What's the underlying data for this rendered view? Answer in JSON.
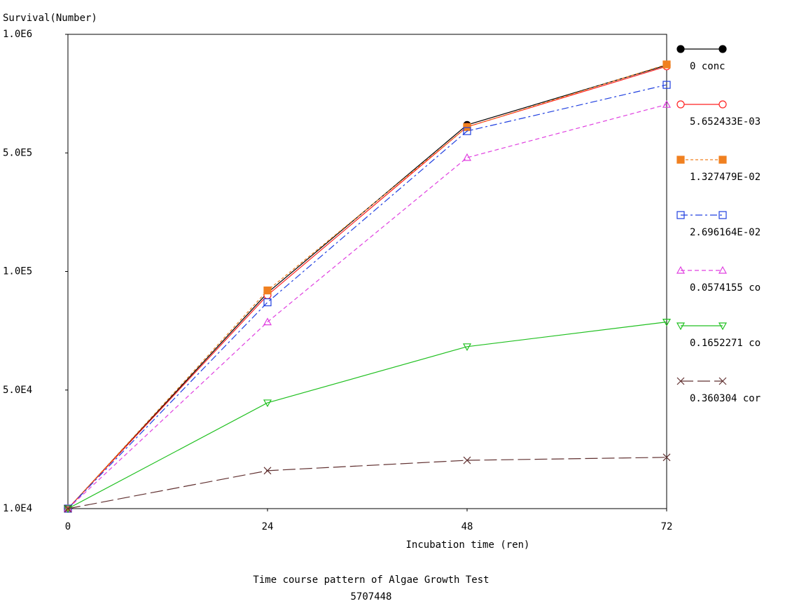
{
  "chart_data": {
    "type": "line",
    "y_axis_label": "Survival(Number)",
    "x_axis_label": "Incubation time (ren)",
    "caption": [
      "Time course pattern of Algae Growth Test",
      "5707448"
    ],
    "x": [
      0,
      24,
      48,
      72
    ],
    "xlim": [
      0,
      72
    ],
    "xticks": [
      0,
      24,
      48,
      72
    ],
    "ylim": [
      10000,
      1000000
    ],
    "yticks": [
      {
        "value": 10000,
        "label": "1.0E4"
      },
      {
        "value": 50000,
        "label": "5.0E4"
      },
      {
        "value": 100000,
        "label": "1.0E5"
      },
      {
        "value": 500000,
        "label": "5.0E5"
      },
      {
        "value": 1000000,
        "label": "1.0E6"
      }
    ],
    "series": [
      {
        "name": "0 conc",
        "color": "#000000",
        "marker": "filled-circle",
        "dash": "solid",
        "values": [
          10000,
          91000,
          618000,
          870000
        ]
      },
      {
        "name": "5.652433E-03",
        "color": "#ff2020",
        "marker": "circle",
        "dash": "solid",
        "values": [
          10000,
          90000,
          610000,
          865000
        ]
      },
      {
        "name": "1.327479E-02",
        "color": "#f08020",
        "marker": "filled-square",
        "dash": "dot",
        "values": [
          10000,
          92000,
          609000,
          873000
        ]
      },
      {
        "name": "2.696164E-02",
        "color": "#2040e0",
        "marker": "square",
        "dash": "dashdot",
        "values": [
          10000,
          87000,
          592000,
          787000
        ]
      },
      {
        "name": "0.0574155 co",
        "color": "#e040e0",
        "marker": "triangle-up",
        "dash": "dash",
        "values": [
          10000,
          78700,
          484000,
          704000
        ]
      },
      {
        "name": "0.1652271 co",
        "color": "#20c020",
        "marker": "triangle-down",
        "dash": "solid",
        "values": [
          10000,
          45700,
          68300,
          78700
        ]
      },
      {
        "name": "0.360304 cor",
        "color": "#603030",
        "marker": "x",
        "dash": "longdash",
        "values": [
          10000,
          22800,
          26300,
          27300
        ]
      }
    ]
  }
}
